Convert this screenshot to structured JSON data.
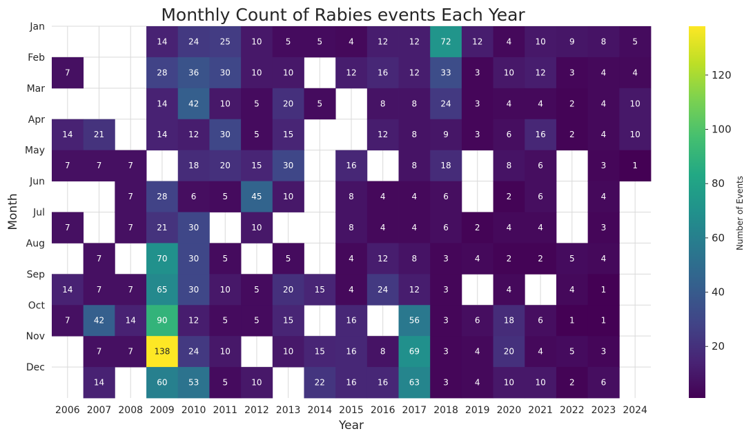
{
  "chart_data": {
    "type": "heatmap",
    "title": "Monthly Count of Rabies events Each Year",
    "xlabel": "Year",
    "ylabel": "Month",
    "colorbar_label": "Number of Events",
    "colormap": "viridis",
    "vmin": 1,
    "vmax": 138,
    "colorbar_ticks": [
      20,
      40,
      60,
      80,
      100,
      120
    ],
    "grid": true,
    "x": [
      "2006",
      "2007",
      "2008",
      "2009",
      "2010",
      "2011",
      "2012",
      "2013",
      "2014",
      "2015",
      "2016",
      "2017",
      "2018",
      "2019",
      "2020",
      "2021",
      "2022",
      "2023",
      "2024"
    ],
    "y": [
      "Jan",
      "Feb",
      "Mar",
      "Apr",
      "May",
      "Jun",
      "Jul",
      "Aug",
      "Sep",
      "Oct",
      "Nov",
      "Dec"
    ],
    "values": [
      [
        null,
        null,
        null,
        14,
        24,
        25,
        10,
        5,
        5,
        4,
        12,
        12,
        72,
        12,
        4,
        10,
        9,
        8,
        5
      ],
      [
        7,
        null,
        null,
        28,
        36,
        30,
        10,
        10,
        null,
        12,
        16,
        12,
        33,
        3,
        10,
        12,
        3,
        4,
        4
      ],
      [
        null,
        null,
        null,
        14,
        42,
        10,
        5,
        20,
        5,
        null,
        8,
        8,
        24,
        3,
        4,
        4,
        2,
        4,
        10
      ],
      [
        14,
        21,
        null,
        14,
        12,
        30,
        5,
        15,
        null,
        null,
        12,
        8,
        9,
        3,
        6,
        16,
        2,
        4,
        10
      ],
      [
        7,
        7,
        7,
        null,
        18,
        20,
        15,
        30,
        null,
        16,
        null,
        8,
        18,
        null,
        8,
        6,
        null,
        3,
        1
      ],
      [
        null,
        null,
        7,
        28,
        6,
        5,
        45,
        10,
        null,
        8,
        4,
        4,
        6,
        null,
        2,
        6,
        null,
        4,
        null
      ],
      [
        7,
        null,
        7,
        21,
        30,
        null,
        10,
        null,
        null,
        8,
        4,
        4,
        6,
        2,
        4,
        4,
        null,
        3,
        null
      ],
      [
        null,
        7,
        null,
        70,
        30,
        5,
        null,
        5,
        null,
        4,
        12,
        8,
        3,
        4,
        2,
        2,
        5,
        4,
        null
      ],
      [
        14,
        7,
        7,
        65,
        30,
        10,
        5,
        20,
        15,
        4,
        24,
        12,
        3,
        null,
        4,
        null,
        4,
        1,
        null
      ],
      [
        7,
        42,
        14,
        90,
        12,
        5,
        5,
        15,
        null,
        16,
        null,
        56,
        3,
        6,
        18,
        6,
        1,
        1,
        null
      ],
      [
        null,
        7,
        7,
        138,
        24,
        10,
        null,
        10,
        15,
        16,
        8,
        69,
        3,
        4,
        20,
        4,
        5,
        3,
        null
      ],
      [
        null,
        14,
        null,
        60,
        53,
        5,
        10,
        null,
        22,
        16,
        16,
        63,
        3,
        4,
        10,
        10,
        2,
        6,
        null
      ]
    ]
  }
}
